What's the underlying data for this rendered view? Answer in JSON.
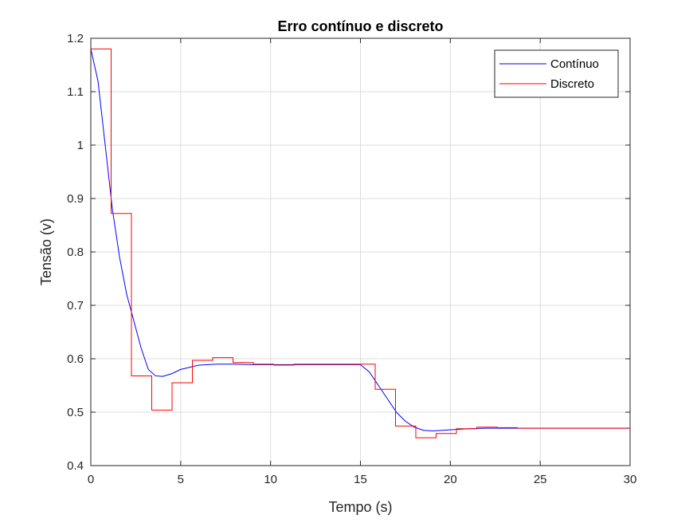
{
  "chart_data": {
    "type": "line",
    "title": "Erro contínuo e discreto",
    "xlabel": "Tempo (s)",
    "ylabel": "Tensão (v)",
    "xlim": [
      0,
      30
    ],
    "ylim": [
      0.4,
      1.2
    ],
    "xticks": [
      "0",
      "5",
      "10",
      "15",
      "20",
      "25",
      "30"
    ],
    "yticks": [
      "0.4",
      "0.5",
      "0.6",
      "0.7",
      "0.8",
      "0.9",
      "1",
      "1.1",
      "1.2"
    ],
    "grid": true,
    "legend_position": "top-right",
    "series": [
      {
        "name": "Contínuo",
        "color": "#0000ff",
        "style": "line",
        "x": [
          0,
          0.4,
          0.8,
          1.2,
          1.6,
          2.0,
          2.4,
          2.8,
          3.2,
          3.6,
          4.0,
          4.5,
          5.0,
          6.0,
          7.0,
          8.0,
          9.0,
          10.0,
          11.0,
          12.0,
          13.0,
          14.0,
          15.0,
          15.5,
          16.0,
          16.5,
          17.0,
          17.5,
          18.0,
          18.5,
          19.0,
          20.0,
          21.0,
          22.0,
          23.0,
          24.0,
          25.0,
          26.0,
          27.0,
          28.0,
          29.0,
          30.0
        ],
        "y": [
          1.18,
          1.12,
          1.0,
          0.88,
          0.79,
          0.72,
          0.67,
          0.62,
          0.58,
          0.568,
          0.567,
          0.572,
          0.58,
          0.588,
          0.59,
          0.59,
          0.589,
          0.589,
          0.589,
          0.589,
          0.589,
          0.589,
          0.589,
          0.575,
          0.55,
          0.525,
          0.5,
          0.483,
          0.472,
          0.466,
          0.465,
          0.467,
          0.469,
          0.47,
          0.47,
          0.47,
          0.47,
          0.47,
          0.47,
          0.47,
          0.47,
          0.47
        ]
      },
      {
        "name": "Discreto",
        "color": "#ff0000",
        "style": "stairs",
        "x": [
          0,
          1.13,
          2.26,
          3.39,
          4.52,
          5.65,
          6.78,
          7.91,
          9.04,
          10.17,
          11.3,
          12.43,
          13.56,
          14.69,
          15.82,
          16.95,
          18.08,
          19.21,
          20.34,
          21.47,
          22.6,
          23.73,
          24.86,
          25.99,
          27.12,
          28.25,
          30.0
        ],
        "y": [
          1.18,
          0.872,
          0.568,
          0.504,
          0.555,
          0.597,
          0.602,
          0.593,
          0.59,
          0.588,
          0.59,
          0.59,
          0.59,
          0.59,
          0.543,
          0.474,
          0.452,
          0.46,
          0.469,
          0.472,
          0.471,
          0.47,
          0.47,
          0.47,
          0.47,
          0.47,
          0.47
        ]
      }
    ]
  }
}
